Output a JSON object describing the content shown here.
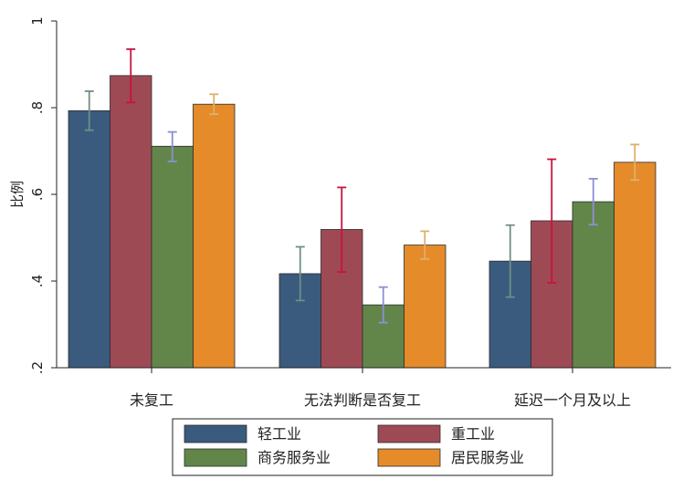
{
  "chart_data": {
    "type": "bar",
    "title": "",
    "xlabel": "",
    "ylabel": "比例",
    "ylim": [
      0.2,
      1.0
    ],
    "yticks": [
      ".2",
      ".4",
      ".6",
      ".8",
      "1"
    ],
    "categories": [
      "未复工",
      "无法判断是否复工",
      "延迟一个月及以上"
    ],
    "series": [
      {
        "name": "轻工业",
        "color": "#3a5a7e",
        "values": [
          0.793,
          0.417,
          0.446
        ],
        "ci_low": [
          0.748,
          0.355,
          0.363
        ],
        "ci_high": [
          0.838,
          0.479,
          0.529
        ]
      },
      {
        "name": "重工业",
        "color": "#9e4a55",
        "values": [
          0.874,
          0.519,
          0.539
        ],
        "ci_low": [
          0.812,
          0.421,
          0.396
        ],
        "ci_high": [
          0.935,
          0.616,
          0.681
        ]
      },
      {
        "name": "商务服务业",
        "color": "#62864a",
        "values": [
          0.711,
          0.345,
          0.583
        ],
        "ci_low": [
          0.676,
          0.304,
          0.53
        ],
        "ci_high": [
          0.744,
          0.386,
          0.636
        ]
      },
      {
        "name": "居民服务业",
        "color": "#e58b2a",
        "values": [
          0.808,
          0.483,
          0.674
        ],
        "ci_low": [
          0.785,
          0.451,
          0.633
        ],
        "ci_high": [
          0.831,
          0.515,
          0.715
        ]
      }
    ],
    "errorbar_colors": [
      "#6f8f88",
      "#c8133c",
      "#8e8ed6",
      "#e0b06a"
    ],
    "legend": {
      "position": "bottom",
      "columns": 2
    },
    "grid": false
  }
}
